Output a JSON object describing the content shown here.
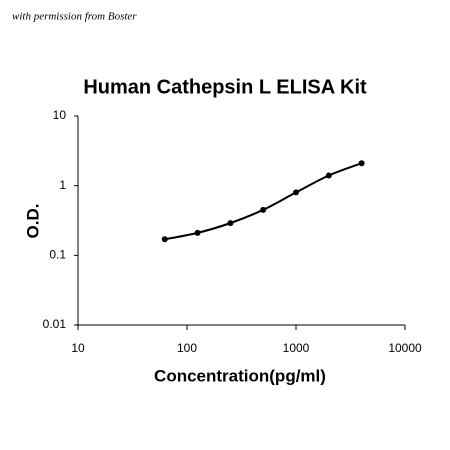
{
  "chart_data": {
    "type": "line",
    "watermark": "with permission from Boster",
    "title": "Human Cathepsin L ELISA Kit",
    "x_label": "Concentration(pg/ml)",
    "y_label": "O.D.",
    "x": [
      62.5,
      125,
      250,
      500,
      1000,
      2000,
      4000
    ],
    "series": [
      {
        "color": "#000000",
        "values": [
          0.17,
          0.21,
          0.29,
          0.45,
          0.8,
          1.4,
          2.1
        ]
      }
    ],
    "xscale": "log",
    "yscale": "log",
    "xlim": [
      10,
      10000
    ],
    "xticks": [
      10,
      100,
      1000,
      10000
    ],
    "ylim": [
      0.01,
      10
    ],
    "yticks": [
      0.01,
      0.1,
      1,
      10
    ],
    "grid": false
  }
}
